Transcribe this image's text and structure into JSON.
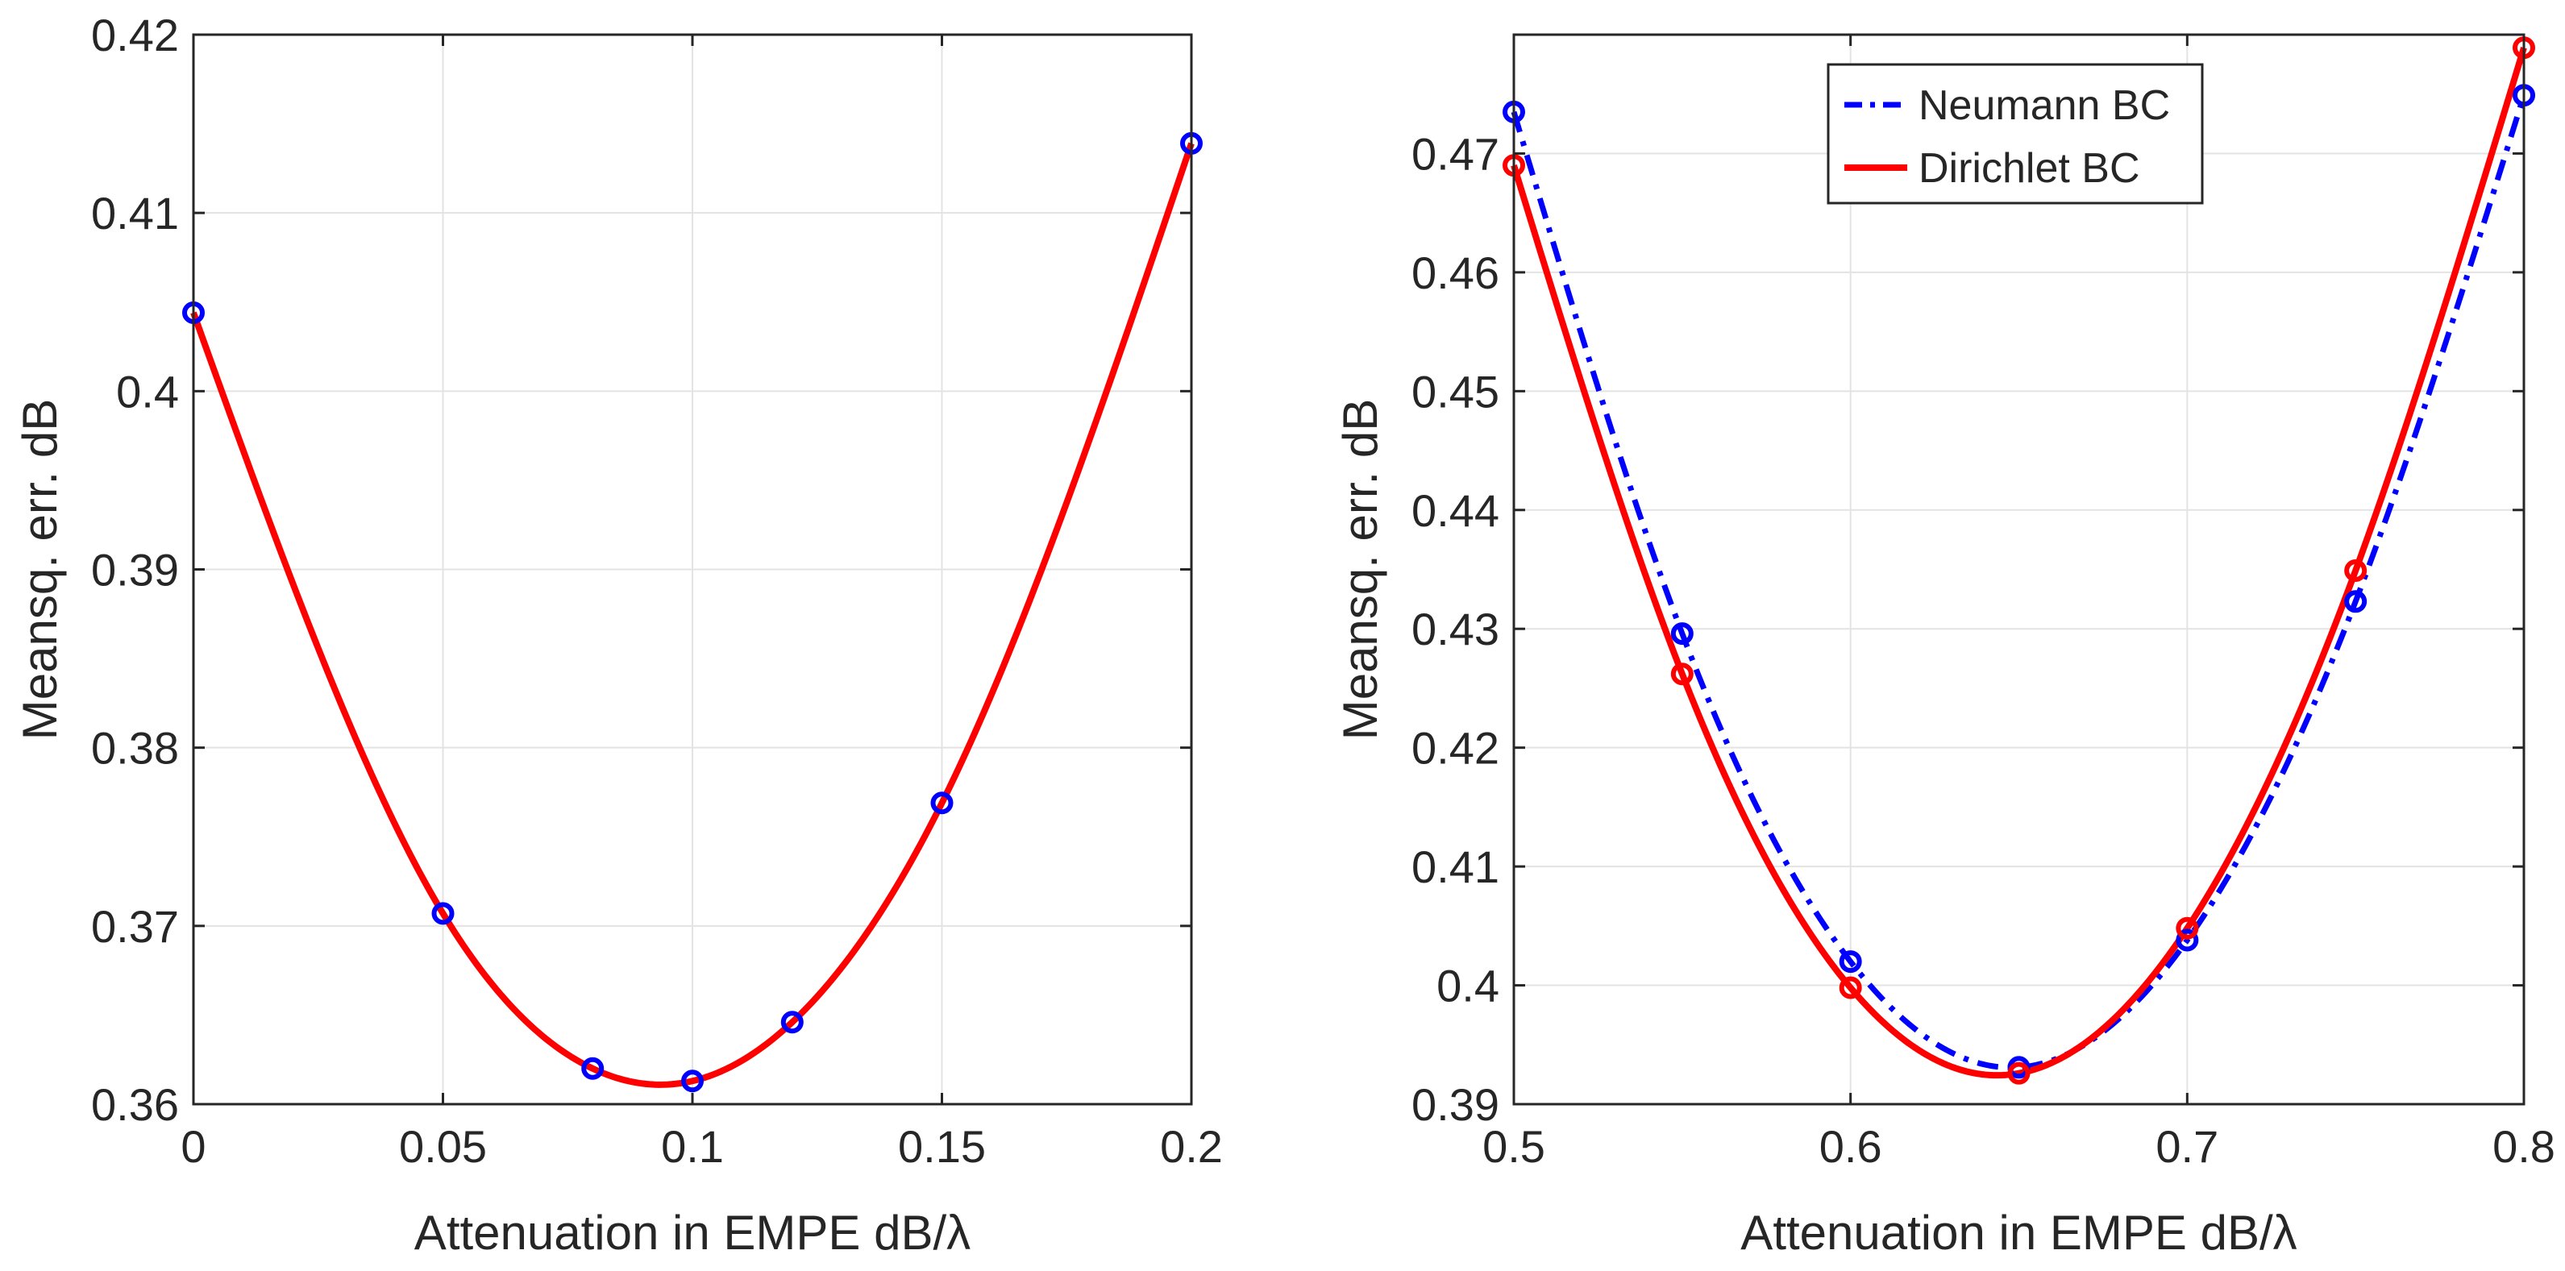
{
  "chart_data": [
    {
      "type": "line",
      "xlabel": "Attenuation in EMPE dB/λ",
      "ylabel": "Meansq. err. dB",
      "xlim": [
        0,
        0.2
      ],
      "ylim": [
        0.36,
        0.42
      ],
      "xticks": [
        0,
        0.05,
        0.1,
        0.15,
        0.2
      ],
      "xtick_labels": [
        "0",
        "0.05",
        "0.1",
        "0.15",
        "0.2"
      ],
      "yticks": [
        0.36,
        0.37,
        0.38,
        0.39,
        0.4,
        0.41,
        0.42
      ],
      "ytick_labels": [
        "0.36",
        "0.37",
        "0.38",
        "0.39",
        "0.4",
        "0.41",
        "0.42"
      ],
      "grid": true,
      "legend": "none",
      "series": [
        {
          "color": "#ff0000",
          "line_style": "solid",
          "marker_color": "#0000ff",
          "x": [
            0,
            0.05,
            0.08,
            0.1,
            0.12,
            0.15,
            0.2
          ],
          "y": [
            0.4044,
            0.3707,
            0.362,
            0.3613,
            0.3646,
            0.3769,
            0.4139
          ]
        }
      ]
    },
    {
      "type": "line",
      "xlabel": "Attenuation in EMPE dB/λ",
      "ylabel": "Meansq. err. dB",
      "xlim": [
        0.5,
        0.8
      ],
      "ylim": [
        0.39,
        0.48
      ],
      "xticks": [
        0.5,
        0.6,
        0.7,
        0.8
      ],
      "xtick_labels": [
        "0.5",
        "0.6",
        "0.7",
        "0.8"
      ],
      "yticks": [
        0.39,
        0.4,
        0.41,
        0.42,
        0.43,
        0.44,
        0.45,
        0.46,
        0.47
      ],
      "ytick_labels": [
        "0.39",
        "0.4",
        "0.41",
        "0.42",
        "0.43",
        "0.44",
        "0.45",
        "0.46",
        "0.47"
      ],
      "grid": true,
      "legend": "top-center",
      "series": [
        {
          "name": "Neumann BC",
          "color": "#0000ff",
          "line_style": "dash-dot",
          "marker_color": "#0000ff",
          "x": [
            0.5,
            0.55,
            0.6,
            0.65,
            0.7,
            0.75,
            0.8
          ],
          "y": [
            0.4735,
            0.4296,
            0.402,
            0.3931,
            0.4038,
            0.4323,
            0.4749
          ]
        },
        {
          "name": "Dirichlet BC",
          "color": "#ff0000",
          "line_style": "solid",
          "marker_color": "#ff0000",
          "x": [
            0.5,
            0.55,
            0.6,
            0.65,
            0.7,
            0.75,
            0.8
          ],
          "y": [
            0.469,
            0.4262,
            0.3998,
            0.3926,
            0.4048,
            0.4349,
            0.4789
          ]
        }
      ]
    }
  ]
}
